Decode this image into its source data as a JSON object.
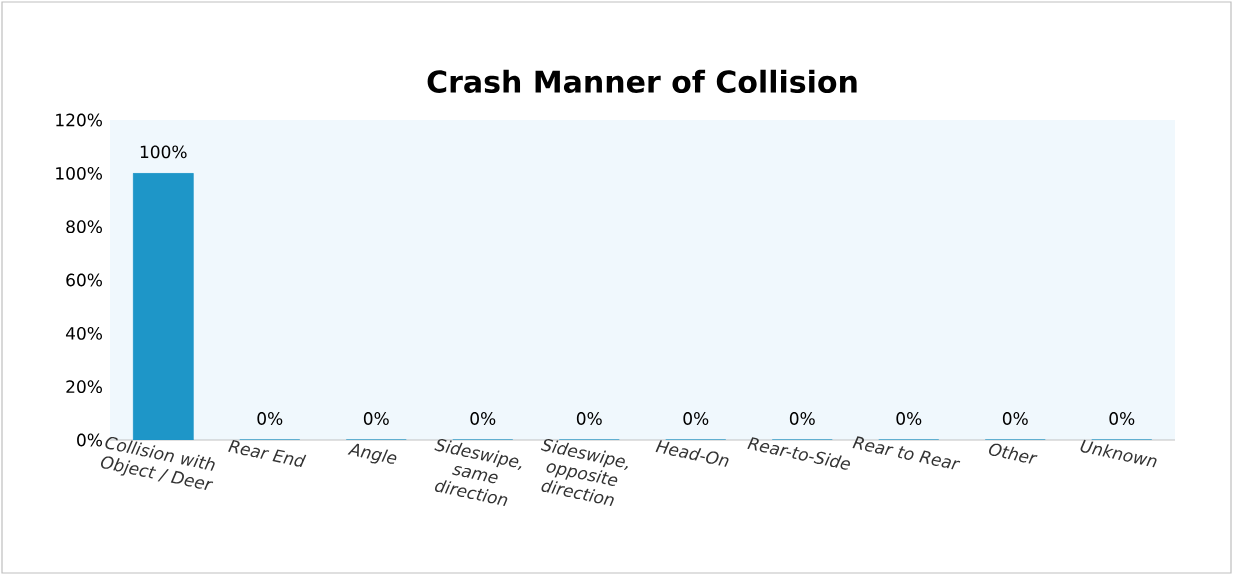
{
  "chart_data": {
    "type": "bar",
    "title": "Crash Manner of Collision",
    "categories": [
      "Collision with Object / Deer",
      "Rear End",
      "Angle",
      "Sideswipe, same direction",
      "Sideswipe, opposite direction",
      "Head-On",
      "Rear-to-Side",
      "Rear to Rear",
      "Other",
      "Unknown"
    ],
    "values": [
      100,
      0,
      0,
      0,
      0,
      0,
      0,
      0,
      0,
      0
    ],
    "value_labels": [
      "100%",
      "0%",
      "0%",
      "0%",
      "0%",
      "0%",
      "0%",
      "0%",
      "0%",
      "0%"
    ],
    "color": "#1e96c8",
    "ylim": [
      0,
      120
    ],
    "yticks": [
      {
        "value": 0,
        "label": "0%"
      },
      {
        "value": 20,
        "label": "20%"
      },
      {
        "value": 40,
        "label": "40%"
      },
      {
        "value": 60,
        "label": "60%"
      },
      {
        "value": 80,
        "label": "80%"
      },
      {
        "value": 100,
        "label": "100%"
      },
      {
        "value": 120,
        "label": "120%"
      }
    ],
    "grid": false
  }
}
